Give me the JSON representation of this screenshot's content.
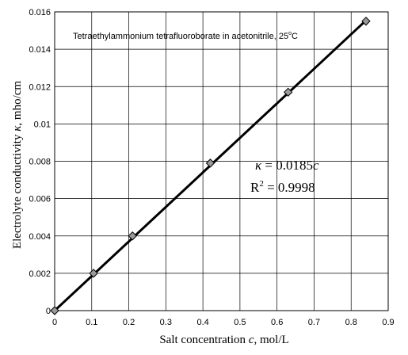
{
  "chart_data": {
    "type": "scatter",
    "annotation": "Tetraethylammonium tetrafluoroborate in acetonitrile, 25°C",
    "annotation_main": "Tetraethylammonium tetrafluoroborate in acetonitrile, 25",
    "annotation_deg": "o",
    "annotation_unit": "C",
    "xlabel": "Salt concentration c , mol/L",
    "xlabel_main": "Salt concentration",
    "xlabel_var": "c",
    "xlabel_unit": ", mol/L",
    "ylabel": "Electrolyte conductivity κ, mho/cm",
    "ylabel_main": "Electrolyte conductivity",
    "ylabel_var": "κ",
    "ylabel_unit": ", mho/cm",
    "xlim": [
      0,
      0.9
    ],
    "ylim": [
      0,
      0.016
    ],
    "xticks": [
      "0",
      "0.1",
      "0.2",
      "0.3",
      "0.4",
      "0.5",
      "0.6",
      "0.7",
      "0.8",
      "0.9"
    ],
    "yticks": [
      "0",
      "0.002",
      "0.004",
      "0.006",
      "0.008",
      "0.01",
      "0.012",
      "0.014",
      "0.016"
    ],
    "grid": true,
    "series": [
      {
        "points": [
          {
            "x": 0,
            "y": 0
          },
          {
            "x": 0.105,
            "y": 0.002
          },
          {
            "x": 0.21,
            "y": 0.004
          },
          {
            "x": 0.42,
            "y": 0.0079
          },
          {
            "x": 0.63,
            "y": 0.0117
          },
          {
            "x": 0.84,
            "y": 0.0155
          }
        ]
      }
    ],
    "fit": {
      "slope": 0.0185,
      "x_range": [
        0,
        0.84
      ],
      "equation_var": "κ",
      "equation_rest": " = 0.0185",
      "equation_c": "c",
      "r2_label": "R",
      "r2_exp": "2",
      "r2_value": " = 0.9998"
    }
  }
}
